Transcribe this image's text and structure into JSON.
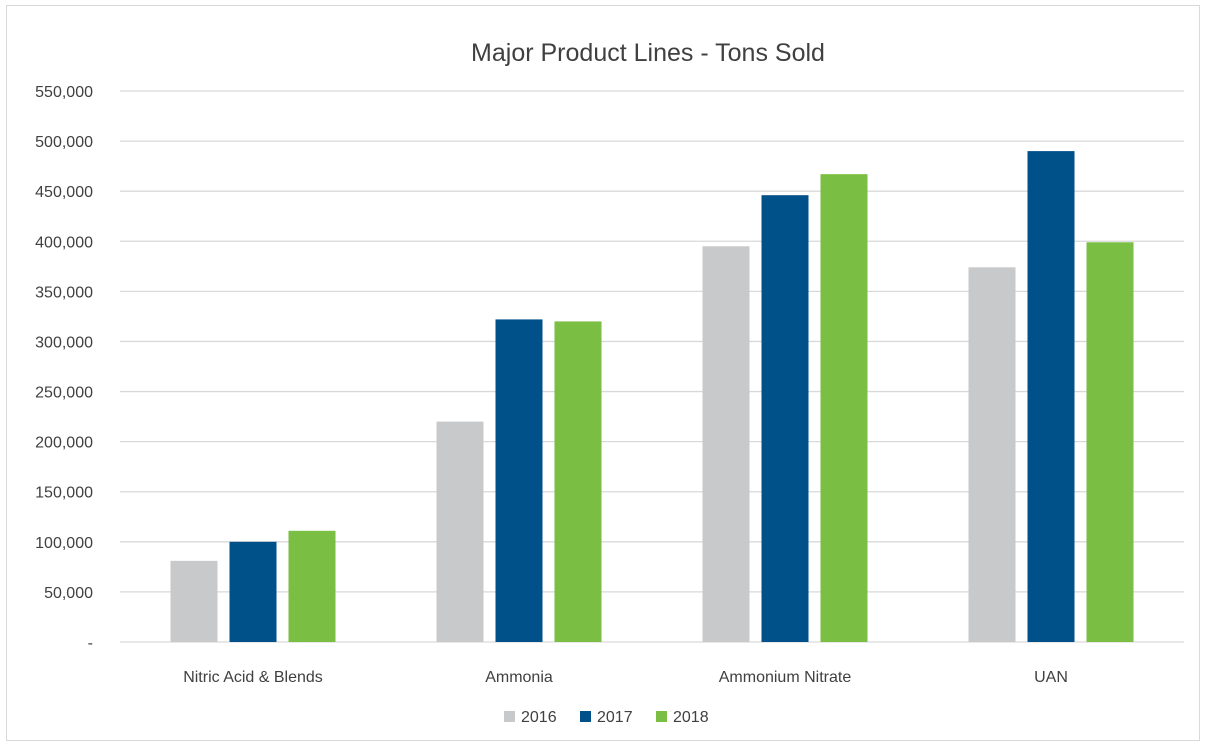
{
  "chart_data": {
    "type": "bar",
    "title": "Major Product Lines - Tons Sold",
    "xlabel": "",
    "ylabel": "",
    "categories": [
      "Nitric Acid & Blends",
      "Ammonia",
      "Ammonium Nitrate",
      "UAN"
    ],
    "series": [
      {
        "name": "2016",
        "color": "#c8c9cb",
        "values": [
          81000,
          220000,
          395000,
          374000
        ]
      },
      {
        "name": "2017",
        "color": "#00508a",
        "values": [
          100000,
          322000,
          446000,
          490000
        ]
      },
      {
        "name": "2018",
        "color": "#7abf43",
        "values": [
          111000,
          320000,
          467000,
          399000
        ]
      }
    ],
    "ylim": [
      0,
      550000
    ],
    "yticks": [
      0,
      50000,
      100000,
      150000,
      200000,
      250000,
      300000,
      350000,
      400000,
      450000,
      500000,
      550000
    ],
    "ytick_labels": [
      "-",
      "50,000",
      "100,000",
      "150,000",
      "200,000",
      "250,000",
      "300,000",
      "350,000",
      "400,000",
      "450,000",
      "500,000",
      "550,000"
    ],
    "grid": true,
    "legend_position": "bottom"
  }
}
